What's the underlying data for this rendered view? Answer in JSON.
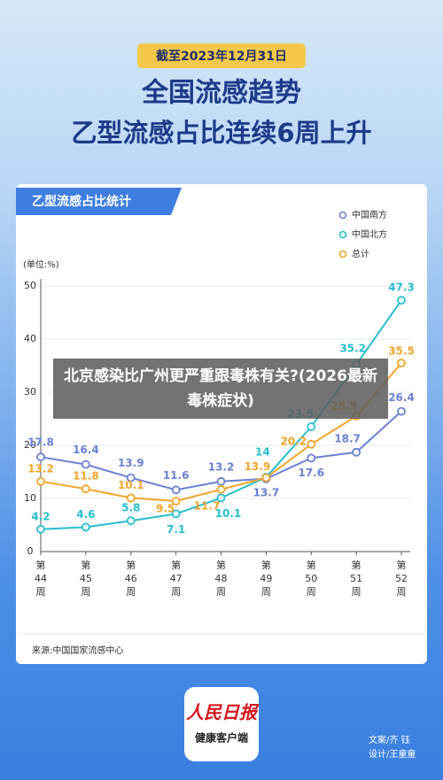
{
  "header": {
    "date": "截至2023年12月31日",
    "title_line1": "全国流感趋势",
    "title_line2": "乙型流感占比连续6周上升"
  },
  "card_title": "乙型流感占比统计",
  "chart_data": {
    "type": "line",
    "y_label": "(单位:%)",
    "categories": [
      [
        "第",
        "44",
        "周"
      ],
      [
        "第",
        "45",
        "周"
      ],
      [
        "第",
        "46",
        "周"
      ],
      [
        "第",
        "47",
        "周"
      ],
      [
        "第",
        "48",
        "周"
      ],
      [
        "第",
        "49",
        "周"
      ],
      [
        "第",
        "50",
        "周"
      ],
      [
        "第",
        "51",
        "周"
      ],
      [
        "第",
        "52",
        "周"
      ]
    ],
    "series": [
      {
        "name": "中国南方",
        "color": "#6b80d6",
        "values": [
          17.8,
          16.4,
          13.9,
          11.6,
          13.2,
          13.7,
          17.6,
          18.7,
          26.4
        ]
      },
      {
        "name": "中国北方",
        "color": "#27bfd0",
        "values": [
          4.2,
          4.6,
          5.8,
          7.1,
          10.1,
          14,
          23.5,
          35.2,
          47.3
        ]
      },
      {
        "name": "总计",
        "color": "#f2a52a",
        "values": [
          13.2,
          11.8,
          10.1,
          9.5,
          11.7,
          13.9,
          20.2,
          25.5,
          35.5
        ]
      }
    ],
    "ylim": [
      0,
      50
    ],
    "yticks": [
      0,
      10,
      20,
      30,
      40,
      50
    ],
    "grid": true
  },
  "source": "来源:中国国家流感中心",
  "overlay": "北京感染比广州更严重跟毒株有关?(2026最新毒株症状)",
  "logo": {
    "brand": "人民日报",
    "sub": "健康客户端"
  },
  "credits": [
    "文案/齐  钰",
    "设计/王童童"
  ]
}
